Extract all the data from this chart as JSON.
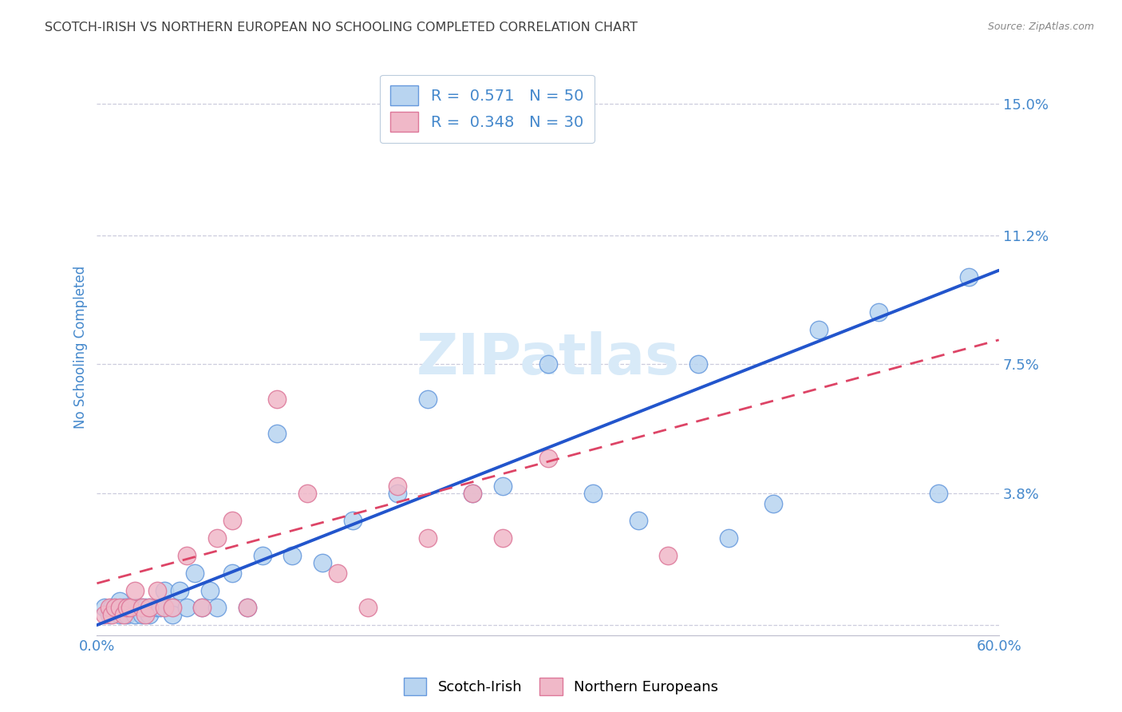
{
  "title": "SCOTCH-IRISH VS NORTHERN EUROPEAN NO SCHOOLING COMPLETED CORRELATION CHART",
  "source": "Source: ZipAtlas.com",
  "xlim": [
    0.0,
    0.6
  ],
  "ylim": [
    -0.003,
    0.163
  ],
  "yticks": [
    0.0,
    0.038,
    0.075,
    0.112,
    0.15
  ],
  "ytick_labels": [
    "",
    "3.8%",
    "7.5%",
    "11.2%",
    "15.0%"
  ],
  "xticks": [
    0.0,
    0.1,
    0.2,
    0.3,
    0.4,
    0.5,
    0.6
  ],
  "xtick_labels": [
    "0.0%",
    "",
    "",
    "",
    "",
    "",
    "60.0%"
  ],
  "legend_label1_r": "R = ",
  "legend_label1_rv": "0.571",
  "legend_label1_n": "  N = ",
  "legend_label1_nv": "50",
  "legend_label2_r": "R = ",
  "legend_label2_rv": "0.348",
  "legend_label2_n": "  N = ",
  "legend_label2_nv": "30",
  "legend_color1": "#b8d4f0",
  "legend_color2": "#f0b8c8",
  "line_color1": "#2255cc",
  "line_color2": "#dd4466",
  "scatter1_color": "#b8d4f0",
  "scatter2_color": "#f0b8c8",
  "scatter1_edgecolor": "#6699dd",
  "scatter2_edgecolor": "#dd7799",
  "scatter1_x": [
    0.005,
    0.008,
    0.01,
    0.012,
    0.015,
    0.015,
    0.018,
    0.02,
    0.02,
    0.022,
    0.025,
    0.025,
    0.028,
    0.03,
    0.03,
    0.032,
    0.035,
    0.035,
    0.04,
    0.042,
    0.045,
    0.05,
    0.05,
    0.055,
    0.06,
    0.065,
    0.07,
    0.075,
    0.08,
    0.09,
    0.1,
    0.11,
    0.12,
    0.13,
    0.15,
    0.17,
    0.2,
    0.22,
    0.25,
    0.27,
    0.3,
    0.33,
    0.36,
    0.4,
    0.42,
    0.45,
    0.48,
    0.52,
    0.56,
    0.58
  ],
  "scatter1_y": [
    0.005,
    0.003,
    0.005,
    0.005,
    0.003,
    0.007,
    0.005,
    0.005,
    0.003,
    0.005,
    0.005,
    0.003,
    0.005,
    0.005,
    0.003,
    0.005,
    0.005,
    0.003,
    0.005,
    0.005,
    0.01,
    0.005,
    0.003,
    0.01,
    0.005,
    0.015,
    0.005,
    0.01,
    0.005,
    0.015,
    0.005,
    0.02,
    0.055,
    0.02,
    0.018,
    0.03,
    0.038,
    0.065,
    0.038,
    0.04,
    0.075,
    0.038,
    0.03,
    0.075,
    0.025,
    0.035,
    0.085,
    0.09,
    0.038,
    0.1
  ],
  "scatter2_x": [
    0.005,
    0.008,
    0.01,
    0.012,
    0.015,
    0.018,
    0.02,
    0.022,
    0.025,
    0.03,
    0.032,
    0.035,
    0.04,
    0.045,
    0.05,
    0.06,
    0.07,
    0.08,
    0.09,
    0.1,
    0.12,
    0.14,
    0.16,
    0.18,
    0.2,
    0.22,
    0.25,
    0.27,
    0.3,
    0.38
  ],
  "scatter2_y": [
    0.003,
    0.005,
    0.003,
    0.005,
    0.005,
    0.003,
    0.005,
    0.005,
    0.01,
    0.005,
    0.003,
    0.005,
    0.01,
    0.005,
    0.005,
    0.02,
    0.005,
    0.025,
    0.03,
    0.005,
    0.065,
    0.038,
    0.015,
    0.005,
    0.04,
    0.025,
    0.038,
    0.025,
    0.048,
    0.02
  ],
  "trend1_x": [
    0.0,
    0.6
  ],
  "trend1_y": [
    0.0,
    0.102
  ],
  "trend2_x": [
    0.0,
    0.6
  ],
  "trend2_y": [
    0.012,
    0.082
  ],
  "background_color": "#ffffff",
  "grid_color": "#ccccdd",
  "title_color": "#404040",
  "axis_color": "#4488cc",
  "source_color": "#888888",
  "watermark_color": "#d8eaf8"
}
